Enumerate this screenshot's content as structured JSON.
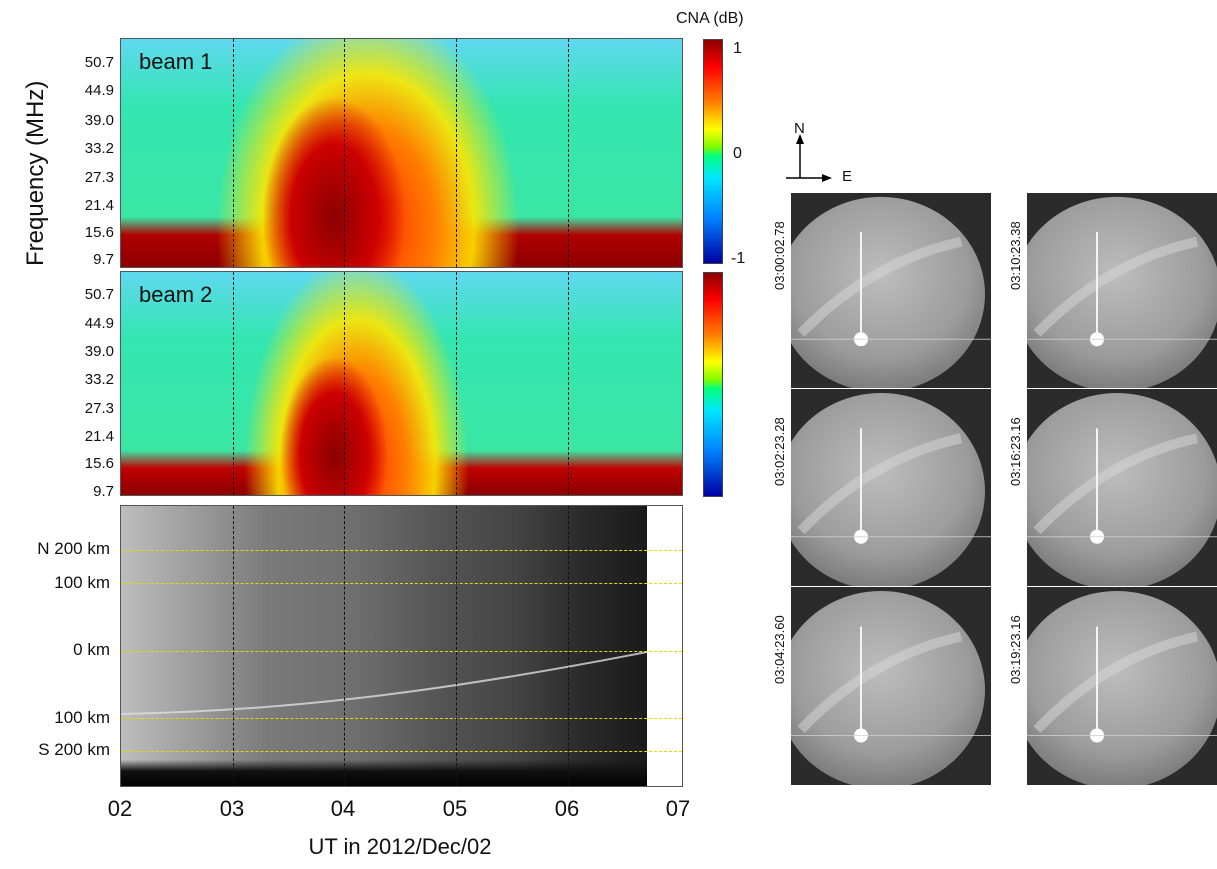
{
  "chart_data": {
    "type": "heatmap",
    "colorbar": {
      "title": "CNA (dB)",
      "ticks": [
        "1",
        "0",
        "-1"
      ]
    },
    "xlabel": "UT in 2012/Dec/02",
    "xticks": [
      "02",
      "03",
      "04",
      "05",
      "06",
      "07"
    ],
    "ylabel": "Frequency (MHz)",
    "yticks": [
      "50.7",
      "44.9",
      "39.0",
      "33.2",
      "27.3",
      "21.4",
      "15.6",
      "9.7"
    ],
    "panels": [
      {
        "label": "beam 1"
      },
      {
        "label": "beam 2"
      },
      {
        "ylabels": [
          "N 200 km",
          "100 km",
          "0 km",
          "100 km",
          "S 200 km"
        ]
      }
    ],
    "compass": {
      "north": "N",
      "east": "E"
    },
    "sky_images": [
      "03:00:02.78",
      "03:02:23.28",
      "03:04:23.60",
      "03:10:23.38",
      "03:16:23.16",
      "03:19:23.16"
    ]
  }
}
